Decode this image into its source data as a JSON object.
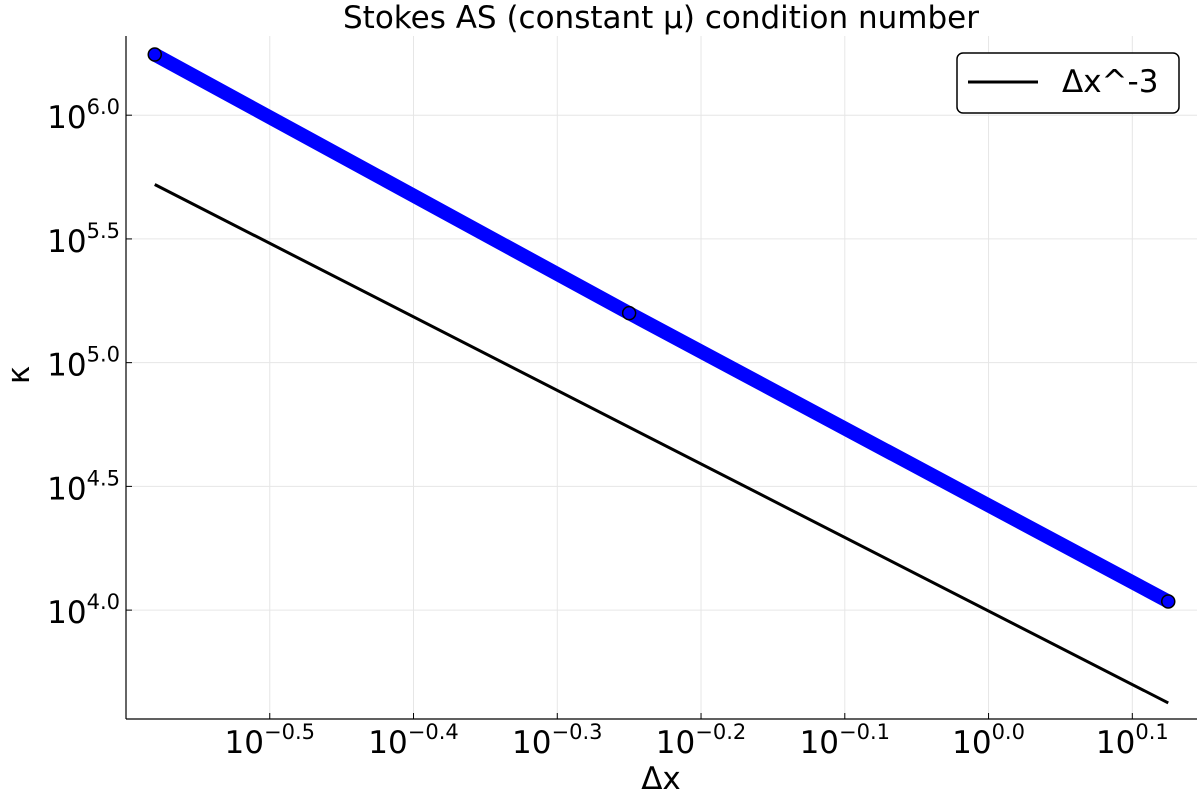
{
  "chart_data": {
    "type": "line",
    "title": "Stokes AS (constant μ) condition number",
    "xlabel": "Δx",
    "ylabel": "κ",
    "x_scale": "log10",
    "y_scale": "log10",
    "xlim_log10": [
      -0.6,
      0.145
    ],
    "ylim_log10": [
      3.56,
      6.32
    ],
    "x_ticks": [
      {
        "base": "10",
        "exp": "−0.5",
        "value_log10": -0.5
      },
      {
        "base": "10",
        "exp": "−0.4",
        "value_log10": -0.4
      },
      {
        "base": "10",
        "exp": "−0.3",
        "value_log10": -0.3
      },
      {
        "base": "10",
        "exp": "−0.2",
        "value_log10": -0.2
      },
      {
        "base": "10",
        "exp": "−0.1",
        "value_log10": -0.1
      },
      {
        "base": "10",
        "exp": "0.0",
        "value_log10": 0.0
      },
      {
        "base": "10",
        "exp": "0.1",
        "value_log10": 0.1
      }
    ],
    "y_ticks": [
      {
        "base": "10",
        "exp": "4.0",
        "value_log10": 4.0
      },
      {
        "base": "10",
        "exp": "4.5",
        "value_log10": 4.5
      },
      {
        "base": "10",
        "exp": "5.0",
        "value_log10": 5.0
      },
      {
        "base": "10",
        "exp": "5.5",
        "value_log10": 5.5
      },
      {
        "base": "10",
        "exp": "6.0",
        "value_log10": 6.0
      }
    ],
    "grid": true,
    "legend_position": "top-right",
    "series": [
      {
        "color": "#0000ff",
        "marker": "circle",
        "x_log10": [
          -0.58,
          -0.25,
          0.125
        ],
        "y_log10": [
          6.245,
          5.2,
          4.035
        ]
      },
      {
        "name": "Δx^-3",
        "color": "#000000",
        "x_log10": [
          -0.58,
          0.125
        ],
        "y_log10": [
          5.72,
          3.625
        ]
      }
    ]
  }
}
